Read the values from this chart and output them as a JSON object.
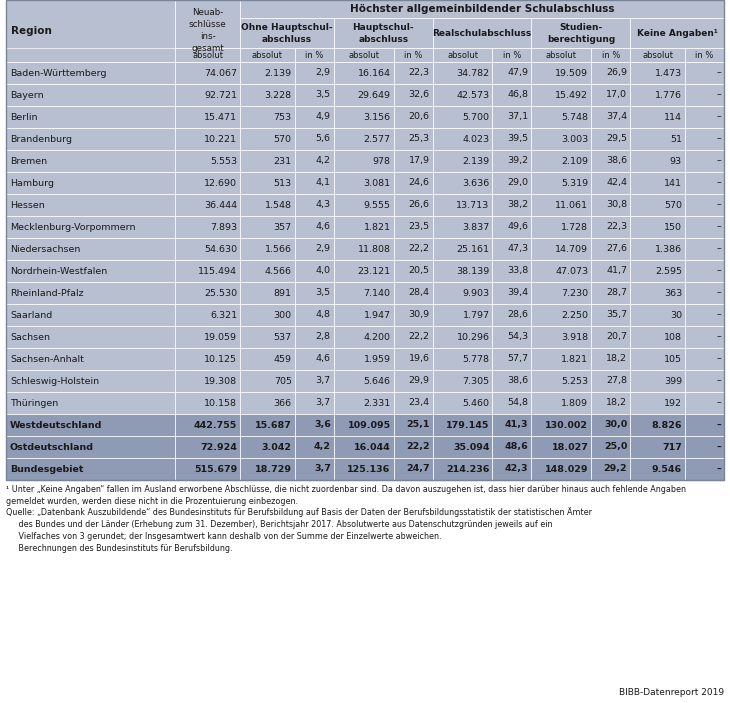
{
  "header_span": "Höchster allgemeinbildender Schulabschluss",
  "subheaders": [
    "Ohne Hauptschul-\nabschluss",
    "Hauptschul-\nabschluss",
    "Realschulabschluss",
    "Studien-\nberechtigung",
    "Keine Angaben¹"
  ],
  "subrow": [
    "absolut",
    "absolut",
    "in %",
    "absolut",
    "in %",
    "absolut",
    "in %",
    "absolut",
    "in %",
    "absolut",
    "in %"
  ],
  "rows": [
    [
      "Baden-Württemberg",
      "74.067",
      "2.139",
      "2,9",
      "16.164",
      "22,3",
      "34.782",
      "47,9",
      "19.509",
      "26,9",
      "1.473",
      "–"
    ],
    [
      "Bayern",
      "92.721",
      "3.228",
      "3,5",
      "29.649",
      "32,6",
      "42.573",
      "46,8",
      "15.492",
      "17,0",
      "1.776",
      "–"
    ],
    [
      "Berlin",
      "15.471",
      "753",
      "4,9",
      "3.156",
      "20,6",
      "5.700",
      "37,1",
      "5.748",
      "37,4",
      "114",
      "–"
    ],
    [
      "Brandenburg",
      "10.221",
      "570",
      "5,6",
      "2.577",
      "25,3",
      "4.023",
      "39,5",
      "3.003",
      "29,5",
      "51",
      "–"
    ],
    [
      "Bremen",
      "5.553",
      "231",
      "4,2",
      "978",
      "17,9",
      "2.139",
      "39,2",
      "2.109",
      "38,6",
      "93",
      "–"
    ],
    [
      "Hamburg",
      "12.690",
      "513",
      "4,1",
      "3.081",
      "24,6",
      "3.636",
      "29,0",
      "5.319",
      "42,4",
      "141",
      "–"
    ],
    [
      "Hessen",
      "36.444",
      "1.548",
      "4,3",
      "9.555",
      "26,6",
      "13.713",
      "38,2",
      "11.061",
      "30,8",
      "570",
      "–"
    ],
    [
      "Mecklenburg-Vorpommern",
      "7.893",
      "357",
      "4,6",
      "1.821",
      "23,5",
      "3.837",
      "49,6",
      "1.728",
      "22,3",
      "150",
      "–"
    ],
    [
      "Niedersachsen",
      "54.630",
      "1.566",
      "2,9",
      "11.808",
      "22,2",
      "25.161",
      "47,3",
      "14.709",
      "27,6",
      "1.386",
      "–"
    ],
    [
      "Nordrhein-Westfalen",
      "115.494",
      "4.566",
      "4,0",
      "23.121",
      "20,5",
      "38.139",
      "33,8",
      "47.073",
      "41,7",
      "2.595",
      "–"
    ],
    [
      "Rheinland-Pfalz",
      "25.530",
      "891",
      "3,5",
      "7.140",
      "28,4",
      "9.903",
      "39,4",
      "7.230",
      "28,7",
      "363",
      "–"
    ],
    [
      "Saarland",
      "6.321",
      "300",
      "4,8",
      "1.947",
      "30,9",
      "1.797",
      "28,6",
      "2.250",
      "35,7",
      "30",
      "–"
    ],
    [
      "Sachsen",
      "19.059",
      "537",
      "2,8",
      "4.200",
      "22,2",
      "10.296",
      "54,3",
      "3.918",
      "20,7",
      "108",
      "–"
    ],
    [
      "Sachsen-Anhalt",
      "10.125",
      "459",
      "4,6",
      "1.959",
      "19,6",
      "5.778",
      "57,7",
      "1.821",
      "18,2",
      "105",
      "–"
    ],
    [
      "Schleswig-Holstein",
      "19.308",
      "705",
      "3,7",
      "5.646",
      "29,9",
      "7.305",
      "38,6",
      "5.253",
      "27,8",
      "399",
      "–"
    ],
    [
      "Thüringen",
      "10.158",
      "366",
      "3,7",
      "2.331",
      "23,4",
      "5.460",
      "54,8",
      "1.809",
      "18,2",
      "192",
      "–"
    ]
  ],
  "summary_rows": [
    [
      "Westdeutschland",
      "442.755",
      "15.687",
      "3,6",
      "109.095",
      "25,1",
      "179.145",
      "41,3",
      "130.002",
      "30,0",
      "8.826",
      "–"
    ],
    [
      "Ostdeutschland",
      "72.924",
      "3.042",
      "4,2",
      "16.044",
      "22,2",
      "35.094",
      "48,6",
      "18.027",
      "25,0",
      "717",
      "–"
    ],
    [
      "Bundesgebiet",
      "515.679",
      "18.729",
      "3,7",
      "125.136",
      "24,7",
      "214.236",
      "42,3",
      "148.029",
      "29,2",
      "9.546",
      "–"
    ]
  ],
  "footnote1": "¹ Unter „Keine Angaben“ fallen im Ausland erworbene Abschlüsse, die nicht zuordenbar sind. Da davon auszugehen ist, dass hier darüber hinaus auch fehlende Angaben\ngemeldet wurden, werden diese nicht in die Prozentuierung einbezogen.",
  "footnote2": "Quelle: „Datenbank Auszubildende“ des Bundesinstituts für Berufsbildung auf Basis der Daten der Berufsbildungsstatistik der statistischen Ämter\n     des Bundes und der Länder (Erhebung zum 31. Dezember), Berichtsjahr 2017. Absolutwerte aus Datenschutzgründen jeweils auf ein\n     Vielfaches von 3 gerundet; der Insgesamtwert kann deshalb von der Summe der Einzelwerte abweichen.\n     Berechnungen des Bundesinstituts für Berufsbildung.",
  "source_right": "BIBB-Datenreport 2019",
  "col_light": "#b8bfd0",
  "col_dark": "#8f9ab5",
  "col_white": "#ffffff",
  "text_color": "#1a1a1a"
}
